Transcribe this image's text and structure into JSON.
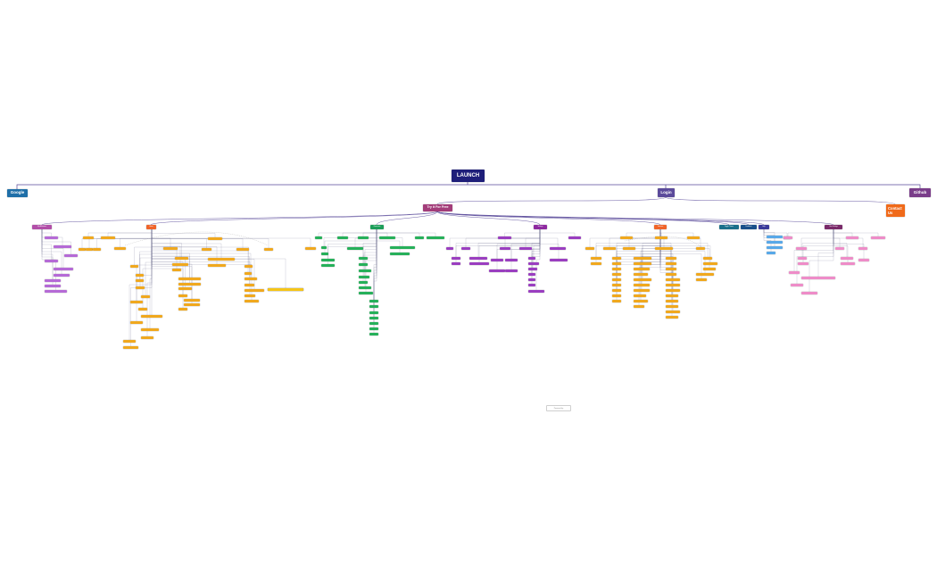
{
  "diagram": {
    "root": {
      "label": "LAUNCH",
      "color": "#1f1f7a"
    },
    "main_branches": [
      {
        "id": "google",
        "label": "Google",
        "color": "#1f6fa8"
      },
      {
        "id": "login",
        "label": "Login",
        "color": "#5b4a9b"
      },
      {
        "id": "github",
        "label": "Github",
        "color": "#7a3d8a"
      }
    ],
    "login_children": [
      {
        "id": "try",
        "label": "Try it For Free",
        "color": "#a33d7a"
      },
      {
        "id": "contact",
        "label": "Contact Us",
        "color": "#f06a1a"
      }
    ],
    "sections": [
      {
        "id": "s1",
        "label": "My Affiliations",
        "color": "#b24fa8"
      },
      {
        "id": "s2",
        "label": "Home",
        "color": "#f0652a"
      },
      {
        "id": "s3",
        "label": "Resources",
        "color": "#1e9e5a"
      },
      {
        "id": "s4",
        "label": "Settings",
        "color": "#8e2aa0"
      },
      {
        "id": "s5",
        "label": "Ventures",
        "color": "#f0652a"
      },
      {
        "id": "s6",
        "label": "Toggle Theme",
        "color": "#1a6f8a"
      },
      {
        "id": "s7",
        "label": "Feedback",
        "color": "#1a4f8a"
      },
      {
        "id": "s8",
        "label": "Help",
        "color": "#3a3a9a"
      },
      {
        "id": "s9",
        "label": "User Settings",
        "color": "#7a2a6a"
      }
    ],
    "leaf_colors": {
      "purple_light": "#b56ad6",
      "orange": "#f0a81e",
      "green": "#26b05a",
      "violet": "#9a3ec0",
      "blue_light": "#58a8e8",
      "pink": "#ee8cc8",
      "yellow": "#f5c518"
    },
    "edge_color": "#5a4a9a",
    "footer": "Powered by"
  }
}
